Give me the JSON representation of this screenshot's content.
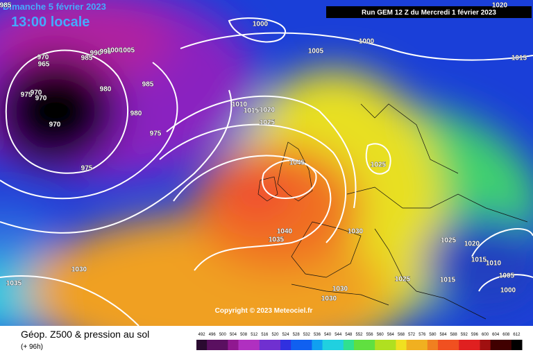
{
  "header": {
    "date": "Dimanche 5 février 2023",
    "time": "13:00 locale",
    "run": "Run GEM 12 Z du Mercredi 1 février 2023"
  },
  "map": {
    "copyright": "Copyright © 2023 Meteociel.fr",
    "isobar_labels": [
      "985",
      "1000",
      "1020",
      "1000",
      "1005",
      "1015",
      "970",
      "965",
      "985",
      "990",
      "995",
      "1000",
      "1005",
      "980",
      "985",
      "975",
      "970",
      "970",
      "980",
      "975",
      "970",
      "975",
      "1010",
      "1015",
      "1020",
      "1025",
      "1045",
      "1025",
      "1040",
      "1035",
      "1030",
      "1025",
      "1020",
      "1015",
      "1010",
      "1030",
      "1035",
      "1025",
      "1015",
      "1005",
      "1000",
      "1030",
      "1030"
    ]
  },
  "footer": {
    "title": "Géop. Z500 & pression au sol",
    "lead": "(+ 96h)"
  },
  "legend": {
    "labels": [
      492,
      496,
      500,
      504,
      508,
      512,
      516,
      520,
      524,
      528,
      532,
      536,
      540,
      544,
      548,
      552,
      556,
      560,
      564,
      568,
      572,
      576,
      580,
      584,
      588,
      592,
      596,
      600,
      604,
      608,
      612
    ]
  }
}
